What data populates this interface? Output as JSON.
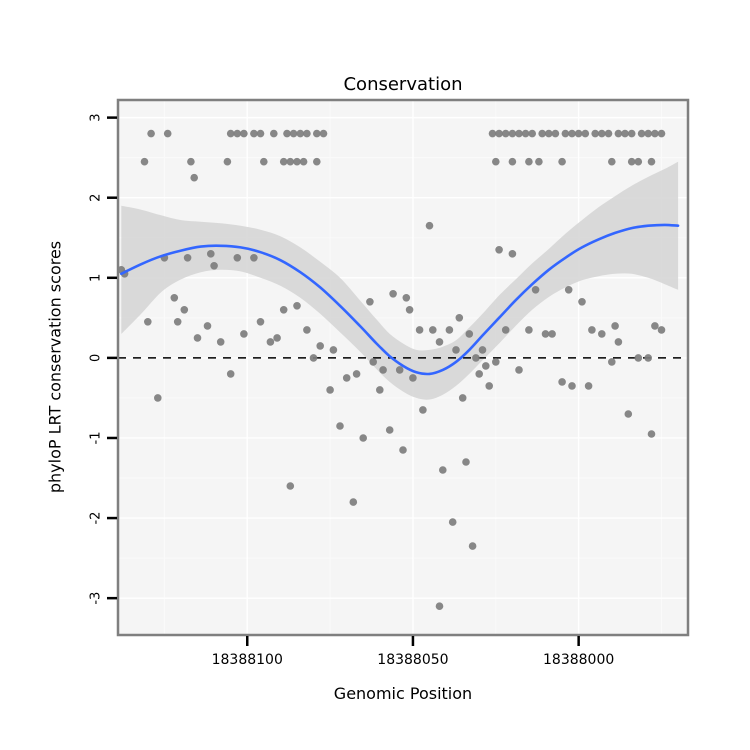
{
  "chart_data": {
    "type": "scatter",
    "title": "Conservation",
    "xlabel": "Genomic Position",
    "ylabel": "phyloP LRT conservation scores",
    "x_axis_reversed": true,
    "x_range": [
      18388139,
      18387967
    ],
    "x_ticks": [
      18388100,
      18388050,
      18388000
    ],
    "x_minor": [
      18388125,
      18388075,
      18388025,
      18387975
    ],
    "y_range": [
      -3.46,
      3.22
    ],
    "y_ticks": [
      -3,
      -2,
      -1,
      0,
      1,
      2,
      3
    ],
    "y_minor": [
      -2.5,
      -1.5,
      -0.5,
      0.5,
      1.5,
      2.5
    ],
    "reference_line_y": 0,
    "grid": true,
    "legend": "none",
    "colors": {
      "point": "#7d7d7d",
      "smooth_line": "#3366FF",
      "ribbon": "#d4d4d4",
      "panel_bg": "#f5f5f5",
      "grid_major": "#ffffff",
      "grid_minor": "#fafafa",
      "panel_border": "#7f7f7f",
      "reference_line": "#000000",
      "tick": "#000000",
      "text": "#000000"
    },
    "points": [
      [
        18388129,
        2.8
      ],
      [
        18388124,
        2.8
      ],
      [
        18388105,
        2.8
      ],
      [
        18388103,
        2.8
      ],
      [
        18388101,
        2.8
      ],
      [
        18388098,
        2.8
      ],
      [
        18388096,
        2.8
      ],
      [
        18388092,
        2.8
      ],
      [
        18388088,
        2.8
      ],
      [
        18388086,
        2.8
      ],
      [
        18388084,
        2.8
      ],
      [
        18388082,
        2.8
      ],
      [
        18388079,
        2.8
      ],
      [
        18388077,
        2.8
      ],
      [
        18388131,
        2.45
      ],
      [
        18388117,
        2.45
      ],
      [
        18388106,
        2.45
      ],
      [
        18388095,
        2.45
      ],
      [
        18388089,
        2.45
      ],
      [
        18388087,
        2.45
      ],
      [
        18388085,
        2.45
      ],
      [
        18388083,
        2.45
      ],
      [
        18388079,
        2.45
      ],
      [
        18388116,
        2.25
      ],
      [
        18388026,
        2.8
      ],
      [
        18388024,
        2.8
      ],
      [
        18388022,
        2.8
      ],
      [
        18388020,
        2.8
      ],
      [
        18388018,
        2.8
      ],
      [
        18388016,
        2.8
      ],
      [
        18388014,
        2.8
      ],
      [
        18388011,
        2.8
      ],
      [
        18388009,
        2.8
      ],
      [
        18388007,
        2.8
      ],
      [
        18388004,
        2.8
      ],
      [
        18388002,
        2.8
      ],
      [
        18388000,
        2.8
      ],
      [
        18387998,
        2.8
      ],
      [
        18387995,
        2.8
      ],
      [
        18387993,
        2.8
      ],
      [
        18387991,
        2.8
      ],
      [
        18387988,
        2.8
      ],
      [
        18387986,
        2.8
      ],
      [
        18387984,
        2.8
      ],
      [
        18387981,
        2.8
      ],
      [
        18387979,
        2.8
      ],
      [
        18387977,
        2.8
      ],
      [
        18387975,
        2.8
      ],
      [
        18388025,
        2.45
      ],
      [
        18388020,
        2.45
      ],
      [
        18388015,
        2.45
      ],
      [
        18388012,
        2.45
      ],
      [
        18388005,
        2.45
      ],
      [
        18387990,
        2.45
      ],
      [
        18387984,
        2.45
      ],
      [
        18387982,
        2.45
      ],
      [
        18387978,
        2.45
      ],
      [
        18388138,
        1.1
      ],
      [
        18388137,
        1.05
      ],
      [
        18388130,
        0.45
      ],
      [
        18388127,
        -0.5
      ],
      [
        18388125,
        1.25
      ],
      [
        18388122,
        0.75
      ],
      [
        18388121,
        0.45
      ],
      [
        18388119,
        0.6
      ],
      [
        18388118,
        1.25
      ],
      [
        18388115,
        0.25
      ],
      [
        18388112,
        0.4
      ],
      [
        18388111,
        1.3
      ],
      [
        18388110,
        1.15
      ],
      [
        18388108,
        0.2
      ],
      [
        18388105,
        -0.2
      ],
      [
        18388103,
        1.25
      ],
      [
        18388101,
        0.3
      ],
      [
        18388098,
        1.25
      ],
      [
        18388096,
        0.45
      ],
      [
        18388093,
        0.2
      ],
      [
        18388091,
        0.25
      ],
      [
        18388089,
        0.6
      ],
      [
        18388087,
        -1.6
      ],
      [
        18388085,
        0.65
      ],
      [
        18388082,
        0.35
      ],
      [
        18388080,
        0
      ],
      [
        18388078,
        0.15
      ],
      [
        18388075,
        -0.4
      ],
      [
        18388074,
        0.1
      ],
      [
        18388072,
        -0.85
      ],
      [
        18388070,
        -0.25
      ],
      [
        18388068,
        -1.8
      ],
      [
        18388067,
        -0.2
      ],
      [
        18388065,
        -1
      ],
      [
        18388063,
        0.7
      ],
      [
        18388062,
        -0.05
      ],
      [
        18388060,
        -0.4
      ],
      [
        18388059,
        -0.15
      ],
      [
        18388057,
        -0.9
      ],
      [
        18388056,
        0.8
      ],
      [
        18388054,
        -0.15
      ],
      [
        18388053,
        -1.15
      ],
      [
        18388052,
        0.75
      ],
      [
        18388051,
        0.6
      ],
      [
        18388050,
        -0.25
      ],
      [
        18388048,
        0.35
      ],
      [
        18388047,
        -0.65
      ],
      [
        18388045,
        1.65
      ],
      [
        18388044,
        0.35
      ],
      [
        18388042,
        -3.1
      ],
      [
        18388042,
        0.2
      ],
      [
        18388041,
        -1.4
      ],
      [
        18388039,
        0.35
      ],
      [
        18388038,
        -2.05
      ],
      [
        18388037,
        0.1
      ],
      [
        18388036,
        0.5
      ],
      [
        18388035,
        -0.5
      ],
      [
        18388034,
        -1.3
      ],
      [
        18388033,
        0.3
      ],
      [
        18388032,
        -2.35
      ],
      [
        18388031,
        0
      ],
      [
        18388030,
        -0.2
      ],
      [
        18388029,
        0.1
      ],
      [
        18388028,
        -0.1
      ],
      [
        18388027,
        -0.35
      ],
      [
        18388025,
        -0.05
      ],
      [
        18388024,
        1.35
      ],
      [
        18388022,
        0.35
      ],
      [
        18388020,
        1.3
      ],
      [
        18388018,
        -0.15
      ],
      [
        18388015,
        0.35
      ],
      [
        18388013,
        0.85
      ],
      [
        18388010,
        0.3
      ],
      [
        18388008,
        0.3
      ],
      [
        18388005,
        -0.3
      ],
      [
        18388003,
        0.85
      ],
      [
        18388002,
        -0.35
      ],
      [
        18387999,
        0.7
      ],
      [
        18387997,
        -0.35
      ],
      [
        18387996,
        0.35
      ],
      [
        18387993,
        0.3
      ],
      [
        18387990,
        -0.05
      ],
      [
        18387989,
        0.4
      ],
      [
        18387988,
        0.2
      ],
      [
        18387985,
        -0.7
      ],
      [
        18387982,
        0
      ],
      [
        18387979,
        0
      ],
      [
        18387978,
        -0.95
      ],
      [
        18387977,
        0.4
      ],
      [
        18387975,
        0.35
      ]
    ],
    "smooth": [
      [
        18388138,
        1.05
      ],
      [
        18388132,
        1.17
      ],
      [
        18388126,
        1.27
      ],
      [
        18388120,
        1.34
      ],
      [
        18388114,
        1.39
      ],
      [
        18388108,
        1.4
      ],
      [
        18388102,
        1.38
      ],
      [
        18388096,
        1.32
      ],
      [
        18388090,
        1.22
      ],
      [
        18388084,
        1.07
      ],
      [
        18388078,
        0.88
      ],
      [
        18388072,
        0.65
      ],
      [
        18388066,
        0.4
      ],
      [
        18388061,
        0.18
      ],
      [
        18388057,
        0.02
      ],
      [
        18388053,
        -0.1
      ],
      [
        18388049,
        -0.18
      ],
      [
        18388045,
        -0.2
      ],
      [
        18388041,
        -0.15
      ],
      [
        18388037,
        -0.05
      ],
      [
        18388033,
        0.1
      ],
      [
        18388029,
        0.28
      ],
      [
        18388024,
        0.5
      ],
      [
        18388019,
        0.72
      ],
      [
        18388014,
        0.92
      ],
      [
        18388009,
        1.1
      ],
      [
        18388004,
        1.25
      ],
      [
        18387999,
        1.38
      ],
      [
        18387994,
        1.48
      ],
      [
        18387989,
        1.56
      ],
      [
        18387984,
        1.62
      ],
      [
        18387979,
        1.65
      ],
      [
        18387974,
        1.66
      ],
      [
        18387970,
        1.65
      ]
    ],
    "ribbon": [
      [
        18388138,
        0.3,
        1.9
      ],
      [
        18388132,
        0.55,
        1.85
      ],
      [
        18388126,
        0.82,
        1.78
      ],
      [
        18388120,
        0.98,
        1.72
      ],
      [
        18388114,
        1.07,
        1.7
      ],
      [
        18388108,
        1.1,
        1.68
      ],
      [
        18388102,
        1.08,
        1.65
      ],
      [
        18388096,
        1.0,
        1.6
      ],
      [
        18388090,
        0.9,
        1.52
      ],
      [
        18388084,
        0.75,
        1.38
      ],
      [
        18388078,
        0.55,
        1.2
      ],
      [
        18388072,
        0.32,
        1.0
      ],
      [
        18388066,
        0.08,
        0.72
      ],
      [
        18388061,
        -0.14,
        0.48
      ],
      [
        18388057,
        -0.3,
        0.3
      ],
      [
        18388053,
        -0.42,
        0.18
      ],
      [
        18388049,
        -0.5,
        0.1
      ],
      [
        18388045,
        -0.52,
        0.1
      ],
      [
        18388041,
        -0.46,
        0.14
      ],
      [
        18388037,
        -0.35,
        0.22
      ],
      [
        18388033,
        -0.2,
        0.38
      ],
      [
        18388029,
        -0.03,
        0.55
      ],
      [
        18388024,
        0.18,
        0.78
      ],
      [
        18388019,
        0.4,
        0.98
      ],
      [
        18388014,
        0.6,
        1.18
      ],
      [
        18388009,
        0.76,
        1.36
      ],
      [
        18388004,
        0.88,
        1.55
      ],
      [
        18387999,
        0.97,
        1.72
      ],
      [
        18387994,
        1.02,
        1.88
      ],
      [
        18387989,
        1.05,
        2.02
      ],
      [
        18387984,
        1.05,
        2.15
      ],
      [
        18387979,
        1.0,
        2.26
      ],
      [
        18387974,
        0.92,
        2.36
      ],
      [
        18387970,
        0.85,
        2.45
      ]
    ]
  }
}
